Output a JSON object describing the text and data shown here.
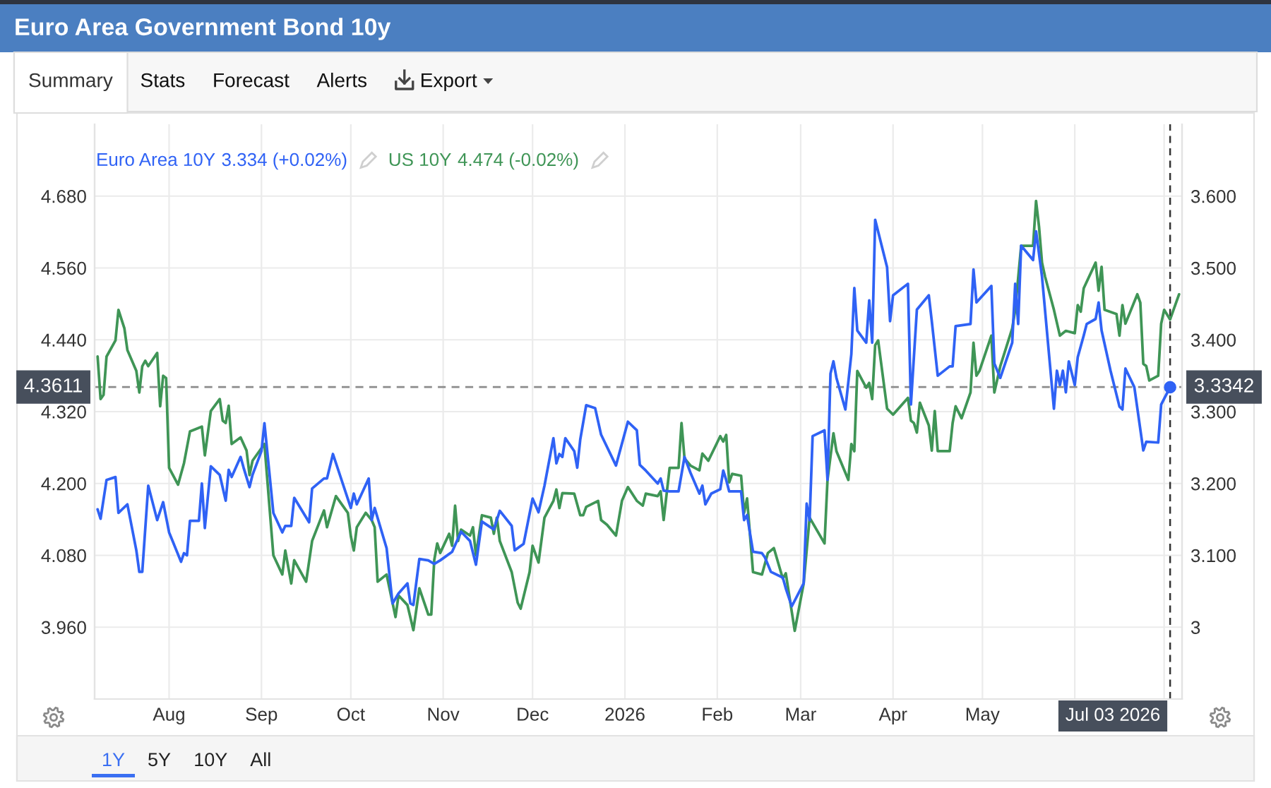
{
  "chart_data": {
    "type": "line",
    "title": "Euro Area Government Bond 10y",
    "annotations": [
      "3.334 (+0.02%)",
      "4.474 (-0.02%)",
      "4.3611",
      "3.3342",
      "Jul 03 2026",
      "Summary",
      "Stats",
      "Forecast",
      "Alerts",
      "Export",
      "1Y",
      "5Y",
      "10Y",
      "All"
    ],
    "legend": "top left",
    "grid": true,
    "xlim": [
      "2025-07-07",
      "2026-07-07"
    ],
    "xticks": [
      {
        "value": "2025-08-01",
        "label": "Aug"
      },
      {
        "value": "2025-09-01",
        "label": "Sep"
      },
      {
        "value": "2025-10-01",
        "label": "Oct"
      },
      {
        "value": "2025-11-01",
        "label": "Nov"
      },
      {
        "value": "2025-12-01",
        "label": "Dec"
      },
      {
        "value": "2026-01-01",
        "label": "2026"
      },
      {
        "value": "2026-02-01",
        "label": "Feb"
      },
      {
        "value": "2026-03-01",
        "label": "Mar"
      },
      {
        "value": "2026-04-01",
        "label": "Apr"
      },
      {
        "value": "2026-05-01",
        "label": "May"
      },
      {
        "value": "2026-06-01",
        "label": null
      },
      {
        "value": "2026-07-01",
        "label": null
      }
    ],
    "ylim": [
      3.84,
      4.8
    ],
    "yticks": [
      {
        "value": 3.96,
        "label": "3.960"
      },
      {
        "value": 4.08,
        "label": "4.080"
      },
      {
        "value": 4.2,
        "label": "4.200"
      },
      {
        "value": 4.32,
        "label": "4.320"
      },
      {
        "value": 4.44,
        "label": "4.440"
      },
      {
        "value": 4.56,
        "label": "4.560"
      },
      {
        "value": 4.68,
        "label": "4.680"
      }
    ],
    "y2lim": [
      2.9,
      3.7
    ],
    "y2ticks": [
      3,
      {
        "value": 3.1,
        "label": "3.100"
      },
      {
        "value": 3.2,
        "label": "3.200"
      },
      {
        "value": 3.3,
        "label": "3.300"
      },
      {
        "value": 3.4,
        "label": "3.400"
      },
      {
        "value": 3.5,
        "label": "3.500"
      },
      {
        "value": 3.6,
        "label": "3.600"
      }
    ],
    "ref_lines": [
      {
        "axis": "y",
        "value": 4.3611,
        "color": "#8c8c8c",
        "line_style": "dashed"
      },
      {
        "axis": "x",
        "value": "2026-07-03",
        "color": "#333333",
        "line_style": "dashed"
      }
    ],
    "series": [
      {
        "name": "Euro Area 10Y",
        "color": "#2f62f5",
        "axis": "y2",
        "x": [
          "2025-07-08",
          "2025-07-09",
          "2025-07-11",
          "2025-07-14",
          "2025-07-15",
          "2025-07-18",
          "2025-07-21",
          "2025-07-22",
          "2025-07-23",
          "2025-07-25",
          "2025-07-28",
          "2025-07-30",
          "2025-08-01",
          "2025-08-05",
          "2025-08-06",
          "2025-08-07",
          "2025-08-08",
          "2025-08-11",
          "2025-08-12",
          "2025-08-13",
          "2025-08-15",
          "2025-08-18",
          "2025-08-20",
          "2025-08-21",
          "2025-08-22",
          "2025-08-25",
          "2025-08-26",
          "2025-08-28",
          "2025-08-29",
          "2025-09-01",
          "2025-09-02",
          "2025-09-05",
          "2025-09-08",
          "2025-09-09",
          "2025-09-11",
          "2025-09-12",
          "2025-09-17",
          "2025-09-18",
          "2025-09-22",
          "2025-09-23",
          "2025-09-25",
          "2025-10-01",
          "2025-10-02",
          "2025-10-03",
          "2025-10-07",
          "2025-10-08",
          "2025-10-09",
          "2025-10-13",
          "2025-10-15",
          "2025-10-17",
          "2025-10-20",
          "2025-10-21",
          "2025-10-22",
          "2025-10-24",
          "2025-10-27",
          "2025-10-29",
          "2025-10-31",
          "2025-11-04",
          "2025-11-07",
          "2025-11-10",
          "2025-11-12",
          "2025-11-14",
          "2025-11-18",
          "2025-11-20",
          "2025-11-24",
          "2025-11-25",
          "2025-11-28",
          "2025-12-01",
          "2025-12-03",
          "2025-12-05",
          "2025-12-08",
          "2025-12-09",
          "2025-12-10",
          "2025-12-11",
          "2025-12-12",
          "2025-12-15",
          "2025-12-16",
          "2025-12-17",
          "2025-12-19",
          "2025-12-22",
          "2025-12-24",
          "2025-12-29",
          "2026-01-02",
          "2026-01-05",
          "2026-01-06",
          "2026-01-08",
          "2026-01-12",
          "2026-01-13",
          "2026-01-14",
          "2026-01-16",
          "2026-01-19",
          "2026-01-21",
          "2026-01-23",
          "2026-01-26",
          "2026-01-27",
          "2026-01-28",
          "2026-01-30",
          "2026-02-02",
          "2026-02-03",
          "2026-02-04",
          "2026-02-05",
          "2026-02-09",
          "2026-02-10",
          "2026-02-11",
          "2026-02-13",
          "2026-02-16",
          "2026-02-17",
          "2026-02-19",
          "2026-02-23",
          "2026-02-24",
          "2026-02-26",
          "2026-03-02",
          "2026-03-03",
          "2026-03-04",
          "2026-03-05",
          "2026-03-09",
          "2026-03-10",
          "2026-03-11",
          "2026-03-12",
          "2026-03-13",
          "2026-03-16",
          "2026-03-18",
          "2026-03-19",
          "2026-03-20",
          "2026-03-23",
          "2026-03-24",
          "2026-03-25",
          "2026-03-26",
          "2026-03-30",
          "2026-03-31",
          "2026-04-01",
          "2026-04-06",
          "2026-04-07",
          "2026-04-09",
          "2026-04-13",
          "2026-04-14",
          "2026-04-16",
          "2026-04-20",
          "2026-04-21",
          "2026-04-22",
          "2026-04-27",
          "2026-04-28",
          "2026-04-29",
          "2026-05-04",
          "2026-05-05",
          "2026-05-07",
          "2026-05-11",
          "2026-05-12",
          "2026-05-13",
          "2026-05-14",
          "2026-05-18",
          "2026-05-19",
          "2026-05-21",
          "2026-05-25",
          "2026-05-26",
          "2026-05-27",
          "2026-05-28",
          "2026-05-29",
          "2026-05-30",
          "2026-06-01",
          "2026-06-02",
          "2026-06-04",
          "2026-06-05",
          "2026-06-08",
          "2026-06-09",
          "2026-06-10",
          "2026-06-13",
          "2026-06-16",
          "2026-06-17",
          "2026-06-18",
          "2026-06-21",
          "2026-06-24",
          "2026-06-25",
          "2026-06-29",
          "2026-06-30",
          "2026-07-03"
        ],
        "values": [
          3.164,
          3.151,
          3.205,
          3.209,
          3.159,
          3.171,
          3.107,
          3.077,
          3.077,
          3.197,
          3.149,
          3.174,
          3.132,
          3.091,
          3.103,
          3.1,
          3.148,
          3.148,
          3.2,
          3.138,
          3.224,
          3.212,
          3.176,
          3.219,
          3.209,
          3.237,
          3.222,
          3.195,
          3.212,
          3.245,
          3.284,
          3.159,
          3.132,
          3.141,
          3.141,
          3.18,
          3.146,
          3.193,
          3.207,
          3.207,
          3.241,
          3.166,
          3.186,
          3.171,
          3.207,
          3.149,
          3.166,
          3.11,
          3.033,
          3.047,
          3.061,
          3.033,
          3.031,
          3.095,
          3.093,
          3.088,
          3.093,
          3.105,
          3.133,
          3.12,
          3.087,
          3.147,
          3.136,
          3.162,
          3.141,
          3.107,
          3.116,
          3.179,
          3.16,
          3.197,
          3.263,
          3.228,
          3.241,
          3.237,
          3.263,
          3.245,
          3.222,
          3.261,
          3.309,
          3.305,
          3.268,
          3.225,
          3.286,
          3.274,
          3.226,
          3.218,
          3.2,
          3.207,
          3.19,
          3.189,
          3.189,
          3.237,
          3.215,
          3.186,
          3.197,
          3.171,
          3.186,
          3.192,
          3.218,
          3.205,
          3.189,
          3.189,
          3.149,
          3.156,
          3.105,
          3.103,
          3.097,
          3.077,
          3.069,
          3.054,
          3.029,
          3.061,
          3.172,
          3.149,
          3.266,
          3.274,
          3.205,
          3.353,
          3.37,
          3.347,
          3.303,
          3.38,
          3.472,
          3.413,
          3.396,
          3.455,
          3.396,
          3.567,
          3.501,
          3.426,
          3.462,
          3.478,
          3.31,
          3.442,
          3.462,
          3.426,
          3.35,
          3.363,
          3.363,
          3.419,
          3.422,
          3.498,
          3.452,
          3.475,
          3.367,
          3.347,
          3.396,
          3.478,
          3.422,
          3.531,
          3.511,
          3.551,
          3.488,
          3.304,
          3.357,
          3.337,
          3.357,
          3.327,
          3.37,
          3.337,
          3.376,
          3.406,
          3.422,
          3.429,
          3.452,
          3.413,
          3.357,
          3.307,
          3.303,
          3.36,
          3.334,
          3.246,
          3.258,
          3.257,
          3.31,
          3.334
        ]
      },
      {
        "name": "US 10Y",
        "color": "#3f9556",
        "x": [
          "2025-07-08",
          "2025-07-09",
          "2025-07-10",
          "2025-07-11",
          "2025-07-14",
          "2025-07-15",
          "2025-07-17",
          "2025-07-18",
          "2025-07-21",
          "2025-07-22",
          "2025-07-23",
          "2025-07-24",
          "2025-07-25",
          "2025-07-28",
          "2025-07-29",
          "2025-07-30",
          "2025-07-31",
          "2025-08-01",
          "2025-08-04",
          "2025-08-06",
          "2025-08-08",
          "2025-08-12",
          "2025-08-13",
          "2025-08-15",
          "2025-08-18",
          "2025-08-19",
          "2025-08-20",
          "2025-08-21",
          "2025-08-22",
          "2025-08-25",
          "2025-08-27",
          "2025-08-28",
          "2025-08-29",
          "2025-09-02",
          "2025-09-05",
          "2025-09-08",
          "2025-09-09",
          "2025-09-11",
          "2025-09-12",
          "2025-09-16",
          "2025-09-18",
          "2025-09-22",
          "2025-09-23",
          "2025-09-26",
          "2025-09-30",
          "2025-10-01",
          "2025-10-02",
          "2025-10-03",
          "2025-10-06",
          "2025-10-08",
          "2025-10-09",
          "2025-10-10",
          "2025-10-13",
          "2025-10-16",
          "2025-10-17",
          "2025-10-20",
          "2025-10-22",
          "2025-10-24",
          "2025-10-27",
          "2025-10-28",
          "2025-10-29",
          "2025-10-30",
          "2025-10-31",
          "2025-11-03",
          "2025-11-04",
          "2025-11-05",
          "2025-11-06",
          "2025-11-07",
          "2025-11-10",
          "2025-11-11",
          "2025-11-12",
          "2025-11-14",
          "2025-11-17",
          "2025-11-18",
          "2025-11-19",
          "2025-11-20",
          "2025-11-24",
          "2025-11-26",
          "2025-11-27",
          "2025-11-30",
          "2025-12-01",
          "2025-12-03",
          "2025-12-05",
          "2025-12-08",
          "2025-12-09",
          "2025-12-10",
          "2025-12-11",
          "2025-12-15",
          "2025-12-17",
          "2025-12-18",
          "2025-12-19",
          "2025-12-23",
          "2025-12-24",
          "2025-12-26",
          "2025-12-29",
          "2025-12-31",
          "2026-01-02",
          "2026-01-05",
          "2026-01-07",
          "2026-01-08",
          "2026-01-12",
          "2026-01-13",
          "2026-01-14",
          "2026-01-16",
          "2026-01-19",
          "2026-01-20",
          "2026-01-21",
          "2026-01-23",
          "2026-01-26",
          "2026-01-27",
          "2026-01-29",
          "2026-02-02",
          "2026-02-03",
          "2026-02-04",
          "2026-02-05",
          "2026-02-06",
          "2026-02-09",
          "2026-02-10",
          "2026-02-11",
          "2026-02-13",
          "2026-02-16",
          "2026-02-18",
          "2026-02-20",
          "2026-02-23",
          "2026-02-24",
          "2026-02-27",
          "2026-03-02",
          "2026-03-04",
          "2026-03-09",
          "2026-03-10",
          "2026-03-12",
          "2026-03-13",
          "2026-03-17",
          "2026-03-18",
          "2026-03-19",
          "2026-03-20",
          "2026-03-23",
          "2026-03-24",
          "2026-03-25",
          "2026-03-26",
          "2026-03-27",
          "2026-03-30",
          "2026-04-01",
          "2026-04-06",
          "2026-04-07",
          "2026-04-08",
          "2026-04-09",
          "2026-04-10",
          "2026-04-13",
          "2026-04-14",
          "2026-04-15",
          "2026-04-16",
          "2026-04-20",
          "2026-04-21",
          "2026-04-22",
          "2026-04-24",
          "2026-04-27",
          "2026-04-28",
          "2026-04-29",
          "2026-04-30",
          "2026-05-04",
          "2026-05-05",
          "2026-05-07",
          "2026-05-11",
          "2026-05-12",
          "2026-05-14",
          "2026-05-18",
          "2026-05-19",
          "2026-05-20",
          "2026-05-21",
          "2026-05-22",
          "2026-05-25",
          "2026-05-27",
          "2026-05-29",
          "2026-06-01",
          "2026-06-02",
          "2026-06-03",
          "2026-06-04",
          "2026-06-08",
          "2026-06-09",
          "2026-06-10",
          "2026-06-11",
          "2026-06-15",
          "2026-06-16",
          "2026-06-17",
          "2026-06-18",
          "2026-06-22",
          "2026-06-23",
          "2026-06-24",
          "2026-06-25",
          "2026-06-26",
          "2026-06-29",
          "2026-06-30",
          "2026-07-01",
          "2026-07-03",
          "2026-07-06"
        ],
        "values": [
          4.412,
          4.341,
          4.348,
          4.412,
          4.439,
          4.49,
          4.459,
          4.423,
          4.388,
          4.352,
          4.396,
          4.405,
          4.396,
          4.418,
          4.329,
          4.38,
          4.376,
          4.226,
          4.198,
          4.234,
          4.287,
          4.295,
          4.247,
          4.321,
          4.341,
          4.305,
          4.301,
          4.33,
          4.266,
          4.277,
          4.255,
          4.214,
          4.238,
          4.266,
          4.08,
          4.048,
          4.088,
          4.033,
          4.072,
          4.036,
          4.104,
          4.155,
          4.127,
          4.179,
          4.151,
          4.112,
          4.088,
          4.127,
          4.151,
          4.139,
          4.127,
          4.036,
          4.048,
          3.977,
          4.013,
          3.997,
          3.955,
          4.025,
          3.981,
          3.981,
          4.072,
          4.1,
          4.084,
          4.116,
          4.096,
          4.163,
          4.104,
          4.123,
          4.113,
          4.127,
          4.08,
          4.147,
          4.143,
          4.116,
          4.143,
          4.104,
          4.052,
          4.001,
          3.991,
          4.052,
          4.096,
          4.068,
          4.143,
          4.171,
          4.19,
          4.159,
          4.184,
          4.183,
          4.147,
          4.147,
          4.161,
          4.171,
          4.139,
          4.131,
          4.113,
          4.171,
          4.194,
          4.171,
          4.163,
          4.183,
          4.179,
          4.187,
          4.139,
          4.226,
          4.226,
          4.301,
          4.242,
          4.23,
          4.222,
          4.25,
          4.238,
          4.279,
          4.27,
          4.281,
          4.202,
          4.216,
          4.213,
          4.151,
          4.175,
          4.052,
          4.048,
          4.084,
          4.092,
          4.041,
          4.05,
          3.954,
          4.033,
          4.143,
          4.1,
          4.206,
          4.284,
          4.254,
          4.206,
          4.266,
          4.254,
          4.388,
          4.36,
          4.368,
          4.341,
          4.431,
          4.439,
          4.325,
          4.315,
          4.343,
          4.305,
          4.301,
          4.285,
          4.335,
          4.297,
          4.255,
          4.321,
          4.254,
          4.254,
          4.301,
          4.329,
          4.309,
          4.352,
          4.435,
          4.38,
          4.388,
          4.447,
          4.352,
          4.396,
          4.459,
          4.49,
          4.597,
          4.597,
          4.672,
          4.629,
          4.569,
          4.546,
          4.49,
          4.447,
          4.455,
          4.451,
          4.498,
          4.487,
          4.526,
          4.569,
          4.522,
          4.562,
          4.49,
          4.483,
          4.447,
          4.498,
          4.467,
          4.516,
          4.502,
          4.4,
          4.396,
          4.372,
          4.38,
          4.467,
          4.49,
          4.474,
          4.516
        ]
      },
      {
        "type": "scatter",
        "color": "#2f62f5",
        "axis": "y2",
        "x": [
          "2026-07-03"
        ],
        "values": [
          3.334
        ]
      }
    ]
  }
}
